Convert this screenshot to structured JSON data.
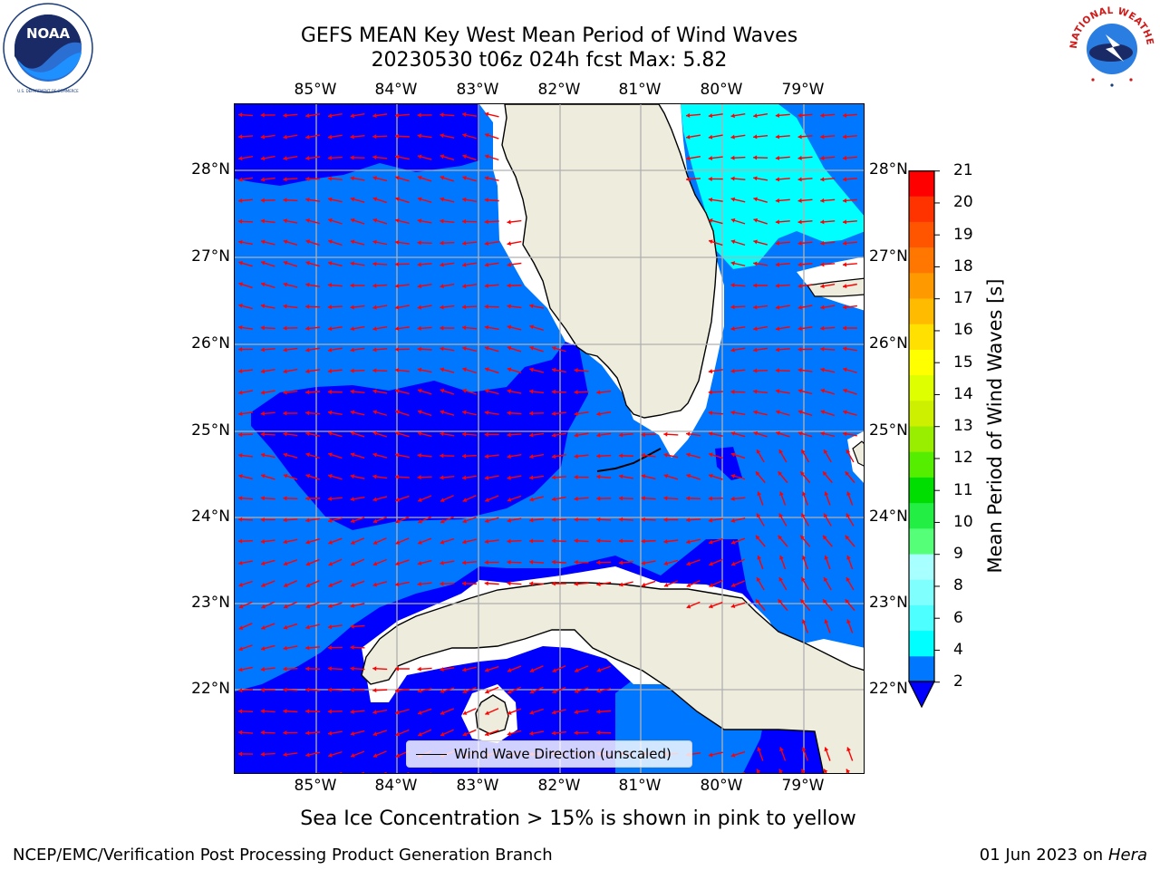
{
  "header": {
    "title_line1": "GEFS MEAN Key West Mean Period of Wind Waves",
    "title_line2": "20230530 t06z 024h fcst   Max: 5.82"
  },
  "logos": {
    "left": {
      "icon": "noaa-logo",
      "text": "NOAA",
      "ring_text": "NATIONAL OCEANIC AND ATMOSPHERIC ADMINISTRATION · U.S. DEPARTMENT OF COMMERCE"
    },
    "right": {
      "icon": "nws-logo",
      "ring_text": "NATIONAL WEATHER SERVICE"
    }
  },
  "map": {
    "lon_labels": [
      "85°W",
      "84°W",
      "83°W",
      "82°W",
      "81°W",
      "80°W",
      "79°W"
    ],
    "lat_labels": [
      "28°N",
      "27°N",
      "26°N",
      "25°N",
      "24°N",
      "23°N",
      "22°N"
    ],
    "legend": {
      "text": "Wind Wave Direction (unscaled)"
    },
    "colors": {
      "land": "#eeecdd",
      "no_data": "#ffffff",
      "band_2_4": "#0077ff",
      "below_2": "#0000ff",
      "band_4_6": "#00ffff",
      "arrows": "#ff0000",
      "grid": "#b0b0b0",
      "coastline": "#000000"
    }
  },
  "colorbar": {
    "label": "Mean Period of Wind Waves [s]",
    "ticks": [
      "21",
      "20",
      "19",
      "18",
      "17",
      "16",
      "15",
      "14",
      "13",
      "12",
      "11",
      "10",
      "9",
      "8",
      "6",
      "4",
      "2"
    ],
    "colors_bottom_to_top": [
      "#0077ff",
      "#00ffff",
      "#4dffff",
      "#80ffff",
      "#a8ffff",
      "#55ff77",
      "#22ee44",
      "#00dd00",
      "#55ee00",
      "#99ee00",
      "#ccf000",
      "#ddff00",
      "#ffff00",
      "#ffe000",
      "#ffbb00",
      "#ff9900",
      "#ff7700",
      "#ff5500",
      "#ff3300",
      "#ff0000"
    ],
    "extend_low_color": "#0000ff"
  },
  "footer": {
    "footnote": "Sea Ice Concentration > 15% is shown in pink to yellow",
    "credit": "NCEP/EMC/Verification Post Processing Product Generation Branch",
    "date": "01 Jun 2023 on",
    "host": "Hera"
  }
}
